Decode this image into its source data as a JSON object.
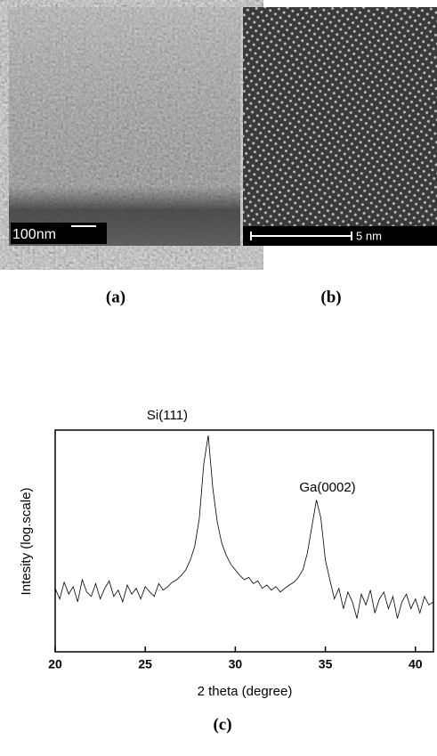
{
  "figure": {
    "panel_a": {
      "scale_label": "100nm",
      "caption": "(a)"
    },
    "panel_b": {
      "scale_label": "5 nm",
      "caption": "(b)"
    },
    "panel_c": {
      "caption": "(c)"
    }
  },
  "chart_data": {
    "type": "line",
    "xlabel": "2 theta (degree)",
    "ylabel": "Intesity (log.scale)",
    "annotations": [
      "Si(111)",
      "Ga(0002)"
    ],
    "log_y": true,
    "color": "#000000",
    "xlim": [
      20,
      41
    ],
    "xticks": [
      20,
      25,
      30,
      35,
      40
    ],
    "ylim": [
      1,
      10000
    ],
    "x": [
      20,
      20.25,
      20.5,
      20.75,
      21,
      21.25,
      21.5,
      21.75,
      22,
      22.25,
      22.5,
      22.75,
      23,
      23.25,
      23.5,
      23.75,
      24,
      24.25,
      24.5,
      24.75,
      25,
      25.25,
      25.5,
      25.75,
      26,
      26.25,
      26.5,
      26.75,
      27,
      27.25,
      27.5,
      27.75,
      28,
      28.25,
      28.5,
      28.75,
      29,
      29.25,
      29.5,
      29.75,
      30,
      30.25,
      30.5,
      30.75,
      31,
      31.25,
      31.5,
      31.75,
      32,
      32.25,
      32.5,
      32.75,
      33,
      33.25,
      33.5,
      33.75,
      34,
      34.25,
      34.5,
      34.75,
      35,
      35.25,
      35.5,
      35.75,
      36,
      36.25,
      36.5,
      36.75,
      37,
      37.25,
      37.5,
      37.75,
      38,
      38.25,
      38.5,
      38.75,
      39,
      39.25,
      39.5,
      39.75,
      40,
      40.25,
      40.5,
      40.75,
      41
    ],
    "values": [
      14,
      9,
      18,
      11,
      15,
      8,
      20,
      12,
      10,
      17,
      9,
      14,
      19,
      10,
      13,
      8,
      16,
      11,
      14,
      9,
      15,
      12,
      10,
      17,
      13,
      15,
      18,
      20,
      24,
      30,
      45,
      80,
      250,
      2500,
      8000,
      900,
      220,
      90,
      55,
      38,
      30,
      24,
      20,
      22,
      17,
      19,
      14,
      16,
      13,
      15,
      12,
      14,
      16,
      18,
      22,
      30,
      60,
      180,
      550,
      260,
      45,
      20,
      9,
      14,
      6,
      12,
      8,
      4,
      11,
      7,
      13,
      5,
      9,
      12,
      6,
      10,
      4,
      8,
      11,
      6,
      9,
      5,
      10,
      7,
      8
    ]
  }
}
